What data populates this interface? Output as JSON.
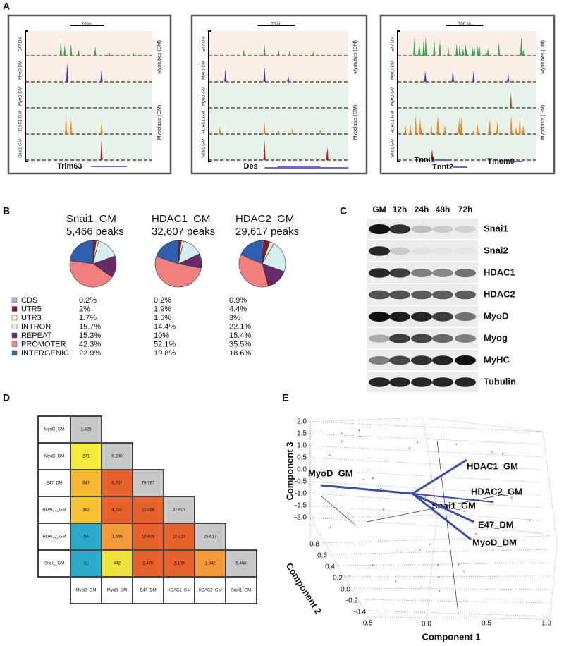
{
  "panel_labels": [
    "A",
    "B",
    "C",
    "D",
    "E"
  ],
  "panel_a": [
    {
      "scale": "10 kb",
      "tracks": [
        "E47 DM",
        "MyoD DM",
        "MyoD GM",
        "HDAC1 GM",
        "Snai1 GM"
      ],
      "groups": [
        "Myotubes (DM)",
        "Myoblasts (GM)"
      ],
      "genes": [
        "Trim63"
      ]
    },
    {
      "scale": "20 kb",
      "tracks": [
        "E47 DM",
        "MyoD DM",
        "MyoD GM",
        "HDAC1 GM",
        "Snai1 GM"
      ],
      "groups": [
        "Myotubes (DM)",
        "Myoblasts (GM)"
      ],
      "genes": [
        "Des"
      ]
    },
    {
      "scale": "100 kb",
      "tracks": [
        "E47 DM",
        "MyoD DM",
        "MyoD GM",
        "HDAC1 GM",
        "Snai1 GM"
      ],
      "groups": [
        "Myotubes (DM)",
        "Myoblasts (GM)"
      ],
      "genes": [
        "Tnni1",
        "Tnnt2",
        "Tmem9"
      ]
    }
  ],
  "chart_data": [
    {
      "type": "pie",
      "title": "Snai1_GM",
      "subtitle": "5,466 peaks",
      "categories": [
        "CDS",
        "UTR5",
        "UTR3",
        "INTRON",
        "REPEAT",
        "PROMOTER",
        "INTERGENIC"
      ],
      "colors": [
        "#9fb4e0",
        "#8b1a3a",
        "#f5f0c0",
        "#d6eef2",
        "#6a2a6a",
        "#f08080",
        "#2f5fb0"
      ],
      "values": [
        0.2,
        2,
        1.7,
        15.7,
        15.3,
        42.3,
        22.9
      ],
      "value_labels": [
        "0.2%",
        "2%",
        "1.7%",
        "15.7%",
        "15.3%",
        "42.3%",
        "22.9%"
      ]
    },
    {
      "type": "pie",
      "title": "HDAC1_GM",
      "subtitle": "32,607 peaks",
      "categories": [
        "CDS",
        "UTR5",
        "UTR3",
        "INTRON",
        "REPEAT",
        "PROMOTER",
        "INTERGENIC"
      ],
      "colors": [
        "#9fb4e0",
        "#8b1a3a",
        "#f5f0c0",
        "#d6eef2",
        "#6a2a6a",
        "#f08080",
        "#2f5fb0"
      ],
      "values": [
        0.2,
        1.9,
        1.5,
        14.4,
        10,
        52.1,
        19.8
      ],
      "value_labels": [
        "0.2%",
        "1.9%",
        "1.5%",
        "14.4%",
        "10%",
        "52.1%",
        "19.8%"
      ]
    },
    {
      "type": "pie",
      "title": "HDAC2_GM",
      "subtitle": "29,617 peaks",
      "categories": [
        "CDS",
        "UTR5",
        "UTR3",
        "INTRON",
        "REPEAT",
        "PROMOTER",
        "INTERGENIC"
      ],
      "colors": [
        "#9fb4e0",
        "#8b1a3a",
        "#f5f0c0",
        "#d6eef2",
        "#6a2a6a",
        "#f08080",
        "#2f5fb0"
      ],
      "values": [
        0.9,
        4.4,
        3,
        22.1,
        15.4,
        35.5,
        18.6
      ],
      "value_labels": [
        "0.9%",
        "4.4%",
        "3%",
        "22.1%",
        "15.4%",
        "35.5%",
        "18.6%"
      ]
    },
    {
      "type": "heatmap",
      "row_labels": [
        "MyoD_GM",
        "MyoD_DM",
        "E47_DM",
        "HDAC1_GM",
        "HDAC2_GM",
        "Snai1_GM"
      ],
      "column_labels": [
        "MyoD_GM",
        "MyoD_DM",
        "E47_DM",
        "HDAC1_GM",
        "HDAC2_GM",
        "Snai1_GM"
      ],
      "values": [
        [
          1428
        ],
        [
          271,
          9300
        ],
        [
          647,
          6797,
          79767
        ],
        [
          362,
          4782,
          23486,
          32607
        ],
        [
          59,
          1646,
          18909,
          10424,
          29617
        ],
        [
          31,
          442,
          2470,
          2109,
          1642,
          5466
        ]
      ],
      "value_labels": [
        [
          "1,428"
        ],
        [
          "271",
          "9,300"
        ],
        [
          "647",
          "6,797",
          "79,767"
        ],
        [
          "362",
          "4,782",
          "23,486",
          "32,607"
        ],
        [
          "59",
          "1,646",
          "18,909",
          "10,424",
          "29,617"
        ],
        [
          "31",
          "442",
          "2,470",
          "2,109",
          "1,642",
          "5,466"
        ]
      ],
      "colors": [
        [
          "#c8c8c8"
        ],
        [
          "#f4ec3c",
          "#c8c8c8"
        ],
        [
          "#f7b733",
          "#e8602c",
          "#c8c8c8"
        ],
        [
          "#f7c233",
          "#e8602c",
          "#e8602c",
          "#c8c8c8"
        ],
        [
          "#2aaac8",
          "#f59a3a",
          "#e8602c",
          "#e8602c",
          "#c8c8c8"
        ],
        [
          "#2aaac8",
          "#f2e23c",
          "#e8602c",
          "#e8602c",
          "#f59a3a",
          "#c8c8c8"
        ]
      ]
    }
  ],
  "blot": {
    "timepoints": [
      "GM",
      "12h",
      "24h",
      "48h",
      "72h"
    ],
    "proteins": [
      "Snai1",
      "Snai2",
      "HDAC1",
      "HDAC2",
      "MyoD",
      "Myog",
      "MyHC",
      "Tubulin"
    ]
  },
  "panel_e": {
    "axis_titles": [
      "Component 3",
      "Component 2",
      "Component 1"
    ],
    "component3_ticks": [
      "2.0",
      "1.5",
      "1.0",
      "0.5",
      "0.0",
      "-0.5",
      "-1.0",
      "-1.5",
      "-2.0"
    ],
    "component2_ticks": [
      "0.8",
      "0.6",
      "0.4",
      "0.2",
      "0.0",
      "-0.2",
      "-0.4"
    ],
    "component1_ticks": [
      "-0.5",
      "0.0",
      "0.5",
      "1.0"
    ],
    "vectors": [
      "MyoD_GM",
      "HDAC1_GM",
      "HDAC2_GM",
      "Snai1_GM",
      "E47_DM",
      "MyoD_DM"
    ]
  }
}
